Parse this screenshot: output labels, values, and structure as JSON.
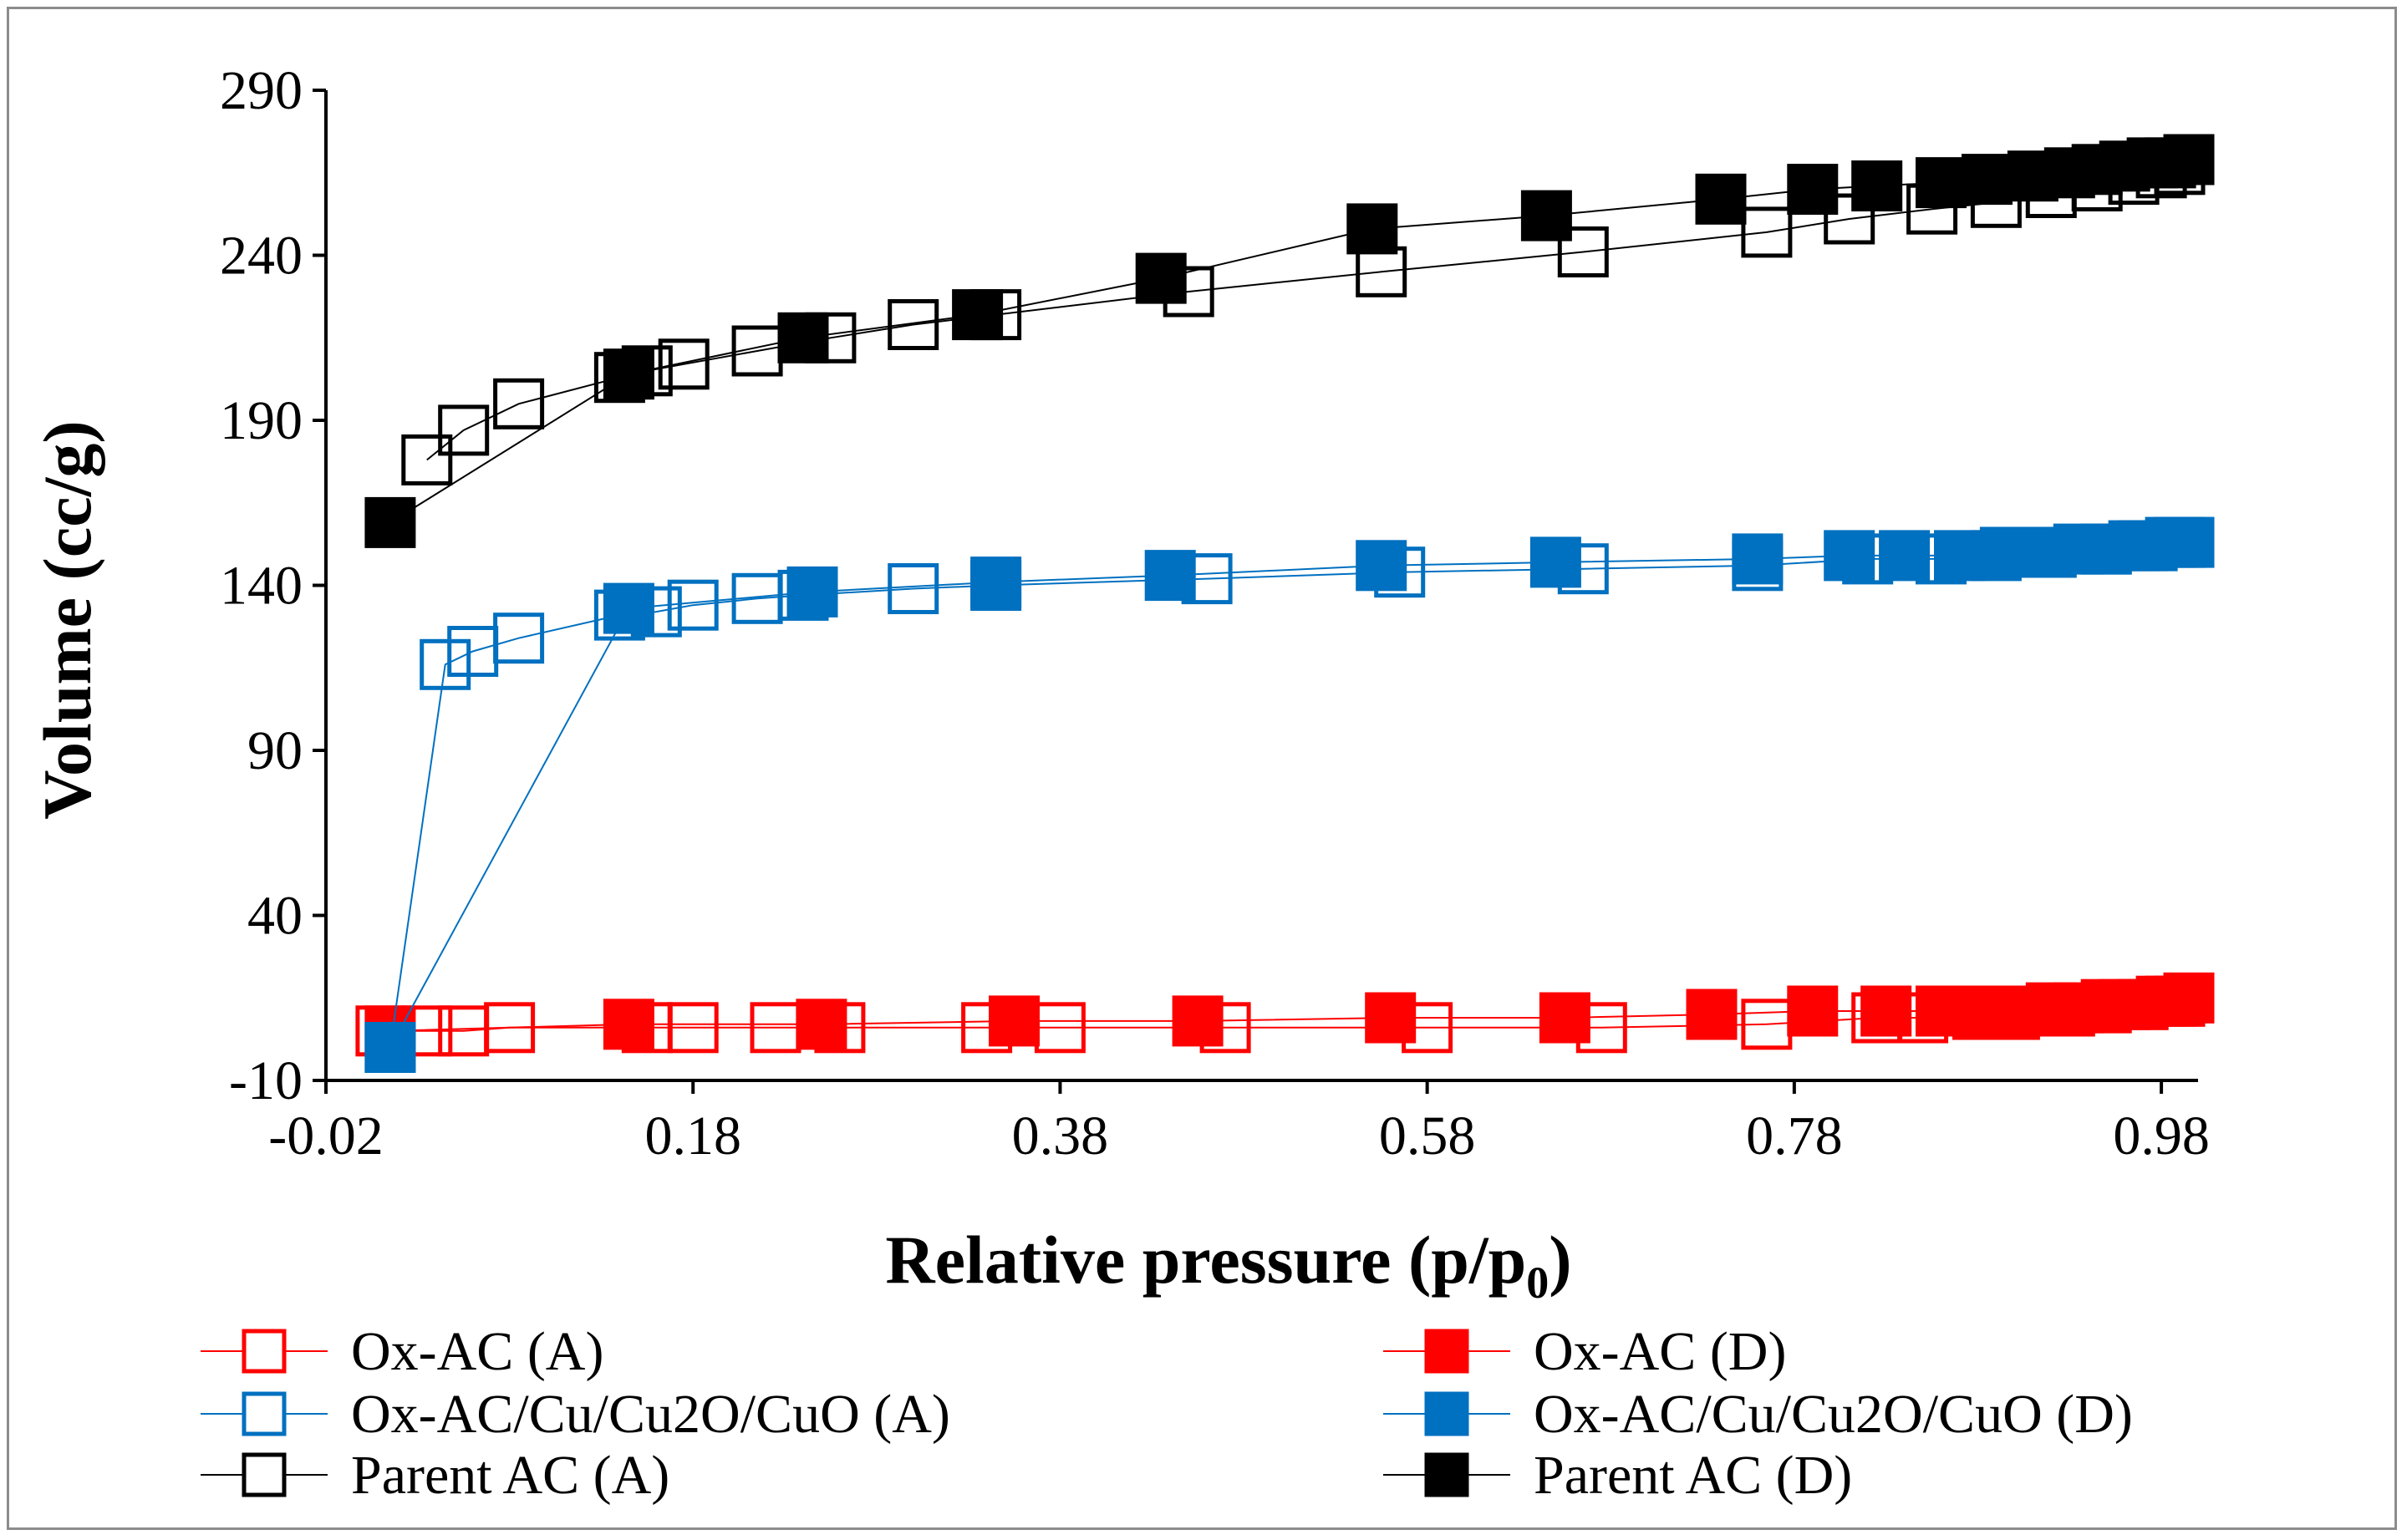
{
  "chart_data": {
    "type": "scatter",
    "title": "",
    "xlabel": "Relative pressure (p/p",
    "xlabel_sub": "0",
    "xlabel_end": ")",
    "ylabel": "Volume (cc/g)",
    "xlim": [
      -0.02,
      1.0
    ],
    "ylim": [
      -10,
      290
    ],
    "xticks": [
      -0.02,
      0.18,
      0.38,
      0.58,
      0.78,
      0.98
    ],
    "xtick_labels": [
      "-0.02",
      "0.18",
      "0.38",
      "0.58",
      "0.78",
      "0.98"
    ],
    "yticks": [
      -10,
      40,
      90,
      140,
      190,
      240,
      290
    ],
    "ytick_labels": [
      "-10",
      "40",
      "90",
      "140",
      "190",
      "240",
      "290"
    ],
    "legend_position": "bottom",
    "series": [
      {
        "name": "Ox-AC (A)",
        "color": "#ff0000",
        "marker": "square-open",
        "x": [
          0.01,
          0.035,
          0.055,
          0.08,
          0.155,
          0.18,
          0.225,
          0.26,
          0.34,
          0.38,
          0.47,
          0.58,
          0.675,
          0.765,
          0.825,
          0.85,
          0.88,
          0.9,
          0.93,
          0.95,
          0.97,
          0.985,
          0.99
        ],
        "y": [
          5,
          5,
          5,
          6,
          6,
          6,
          6,
          6,
          6,
          6,
          6,
          6,
          6,
          7,
          9,
          9,
          10,
          10,
          11,
          12,
          13,
          14,
          14
        ]
      },
      {
        "name": "Ox-AC (D)",
        "color": "#ff0000",
        "marker": "square-filled",
        "x": [
          0.015,
          0.145,
          0.25,
          0.355,
          0.455,
          0.56,
          0.655,
          0.735,
          0.79,
          0.83,
          0.86,
          0.885,
          0.905,
          0.92,
          0.935,
          0.95,
          0.96,
          0.97,
          0.98,
          0.99,
          0.995
        ],
        "y": [
          5,
          7,
          7,
          8,
          8,
          9,
          9,
          10,
          11,
          11,
          11,
          11,
          11,
          12,
          12,
          13,
          13,
          13,
          14,
          14,
          15
        ]
      },
      {
        "name": "Ox-AC/Cu/Cu2O/CuO (A)",
        "color": "#0070c0",
        "marker": "square-open",
        "x": [
          0.015,
          0.045,
          0.06,
          0.085,
          0.14,
          0.16,
          0.18,
          0.215,
          0.24,
          0.3,
          0.345,
          0.46,
          0.565,
          0.665,
          0.76,
          0.82,
          0.86,
          0.89,
          0.92,
          0.95,
          0.97,
          0.99
        ],
        "y": [
          0,
          116,
          120,
          124,
          131,
          132,
          134,
          136,
          137,
          139,
          140,
          142,
          144,
          145,
          146,
          148,
          148,
          149,
          150,
          151,
          152,
          153
        ]
      },
      {
        "name": "Ox-AC/Cu/Cu2O/CuO (D)",
        "color": "#0070c0",
        "marker": "square-filled",
        "x": [
          0.015,
          0.145,
          0.245,
          0.345,
          0.44,
          0.555,
          0.65,
          0.76,
          0.81,
          0.84,
          0.87,
          0.895,
          0.915,
          0.935,
          0.95,
          0.965,
          0.975,
          0.985,
          0.995
        ],
        "y": [
          0,
          133,
          138,
          141,
          143,
          146,
          147,
          148,
          149,
          149,
          149,
          150,
          150,
          151,
          151,
          152,
          152,
          153,
          153
        ]
      },
      {
        "name": "Parent AC (A)",
        "color": "#000000",
        "marker": "square-open",
        "x": [
          0.035,
          0.055,
          0.085,
          0.14,
          0.155,
          0.175,
          0.215,
          0.255,
          0.3,
          0.345,
          0.45,
          0.555,
          0.665,
          0.765,
          0.81,
          0.855,
          0.89,
          0.92,
          0.945,
          0.965,
          0.98,
          0.99
        ],
        "y": [
          178,
          187,
          195,
          203,
          205,
          207,
          211,
          215,
          219,
          222,
          229,
          235,
          241,
          247,
          251,
          254,
          256,
          259,
          261,
          263,
          265,
          266
        ]
      },
      {
        "name": "Parent AC (D)",
        "color": "#000000",
        "marker": "square-filled",
        "x": [
          0.015,
          0.145,
          0.24,
          0.335,
          0.435,
          0.55,
          0.645,
          0.74,
          0.79,
          0.825,
          0.86,
          0.885,
          0.91,
          0.93,
          0.945,
          0.96,
          0.975,
          0.985,
          0.995
        ],
        "y": [
          159,
          204,
          215,
          222,
          233,
          248,
          252,
          257,
          260,
          261,
          262,
          263,
          264,
          265,
          266,
          267,
          268,
          268,
          269
        ]
      }
    ]
  }
}
